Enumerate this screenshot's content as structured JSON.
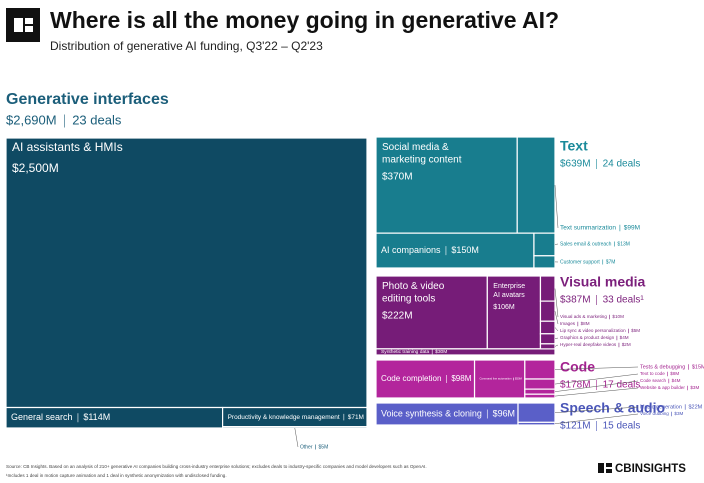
{
  "chart_data": {
    "type": "treemap",
    "title": "Where is all the money going in generative AI?",
    "subtitle": "Distribution of generative AI funding, Q3'22 – Q2'23",
    "groups": [
      {
        "name": "Generative interfaces",
        "total": "$2,690M",
        "deals": "23 deals",
        "color": "#0f4a63",
        "title_color": "#1b5e7a",
        "items": [
          {
            "name": "AI assistants & HMIs",
            "value": 2500,
            "value_label": "$2,500M"
          },
          {
            "name": "General search",
            "value": 114,
            "value_label": "$114M"
          },
          {
            "name": "Productivity & knowledge management",
            "value": 71,
            "value_label": "$71M"
          },
          {
            "name": "Other",
            "value": 5,
            "value_label": "$5M"
          }
        ]
      },
      {
        "name": "Text",
        "total": "$639M",
        "deals": "24 deals",
        "color": "#187d8e",
        "title_color": "#1a8a9a",
        "items": [
          {
            "name": "Social media & marketing content",
            "value": 370,
            "value_label": "$370M"
          },
          {
            "name": "Text summarization",
            "value": 99,
            "value_label": "$99M"
          },
          {
            "name": "AI companions",
            "value": 150,
            "value_label": "$150M"
          },
          {
            "name": "Sales email & outreach",
            "value": 13,
            "value_label": "$13M"
          },
          {
            "name": "Customer support",
            "value": 7,
            "value_label": "$7M"
          }
        ]
      },
      {
        "name": "Visual media",
        "total": "$387M",
        "deals": "33 deals¹",
        "color": "#761c78",
        "title_color": "#7b1f7b",
        "items": [
          {
            "name": "Photo & video editing tools",
            "value": 222,
            "value_label": "$222M"
          },
          {
            "name": "Enterprise AI avatars",
            "value": 106,
            "value_label": "$106M"
          },
          {
            "name": "Synthetic training data",
            "value": 30,
            "value_label": "$30M"
          },
          {
            "name": "Visual ads & marketing",
            "value": 10,
            "value_label": "$10M"
          },
          {
            "name": "Images",
            "value": 8,
            "value_label": "$8M"
          },
          {
            "name": "Lip sync & video personalization",
            "value": 5,
            "value_label": "$5M"
          },
          {
            "name": "Graphics & product design",
            "value": 4,
            "value_label": "$4M"
          },
          {
            "name": "Hyper-real deepfake videos",
            "value": 2,
            "value_label": "$2M"
          }
        ]
      },
      {
        "name": "Code",
        "total": "$178M",
        "deals": "17 deals",
        "color": "#b3259c",
        "title_color": "#a3238f",
        "items": [
          {
            "name": "Code completion",
            "value": 98,
            "value_label": "$98M"
          },
          {
            "name": "Command line automation",
            "value": 50,
            "value_label": "$50M"
          },
          {
            "name": "Tests & debugging",
            "value": 15,
            "value_label": "$15M"
          },
          {
            "name": "Text to code",
            "value": 8,
            "value_label": "$8M"
          },
          {
            "name": "Code search",
            "value": 4,
            "value_label": "$4M"
          },
          {
            "name": "Website & app builder",
            "value": 3,
            "value_label": "$3M"
          }
        ]
      },
      {
        "name": "Speech & audio",
        "total": "$121M",
        "deals": "15 deals",
        "color": "#5a5fc8",
        "title_color": "#4a56b8",
        "items": [
          {
            "name": "Voice synthesis & cloning",
            "value": 96,
            "value_label": "$96M"
          },
          {
            "name": "Music generation",
            "value": 22,
            "value_label": "$22M"
          },
          {
            "name": "Voice dubbing",
            "value": 3,
            "value_label": "$3M"
          }
        ]
      }
    ],
    "source": "Source: CB Insights. Based on an analysis of 210+ generative AI companies building cross-industry enterprise solutions; excludes deals to industry-specific companies and model developers such as OpenAI.",
    "footnote": "¹Includes 1 deal in motion capture animation and 1 deal in synthetic anonymization with undisclosed funding.",
    "brand": "CBINSIGHTS"
  }
}
